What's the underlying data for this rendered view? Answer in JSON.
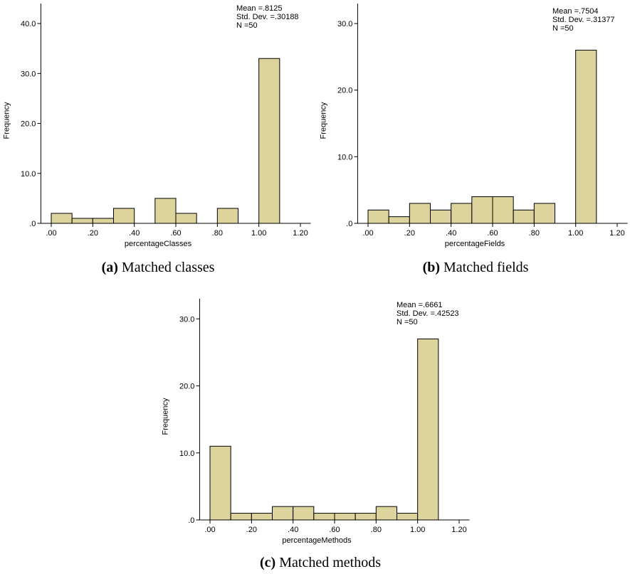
{
  "figure": {
    "captions": [
      {
        "tag": "(a)",
        "text": "Matched classes"
      },
      {
        "tag": "(b)",
        "text": "Matched fields"
      },
      {
        "tag": "(c)",
        "text": "Matched methods"
      }
    ]
  },
  "style": {
    "bar_fill": "#ddd39c",
    "bar_stroke": "#000000",
    "axis_color": "#000000"
  },
  "chart_data": [
    {
      "type": "bar",
      "title": "",
      "xlabel": "percentageClasses",
      "ylabel": "Frequency",
      "bin_width": 0.1,
      "bins": [
        0.0,
        0.1,
        0.2,
        0.3,
        0.5,
        0.6,
        0.8,
        1.0
      ],
      "values": [
        2,
        1,
        1,
        3,
        5,
        2,
        3,
        33
      ],
      "xlim": [
        -0.05,
        1.25
      ],
      "ylim": [
        0,
        44
      ],
      "xticks": [
        0.0,
        0.2,
        0.4,
        0.6,
        0.8,
        1.0,
        1.2
      ],
      "xtick_labels": [
        ".00",
        ".20",
        ".40",
        ".60",
        ".80",
        "1.00",
        "1.20"
      ],
      "yticks": [
        0,
        10,
        20,
        30,
        40
      ],
      "ytick_labels": [
        ".0",
        "10.0",
        "20.0",
        "30.0",
        "40.0"
      ],
      "stats": [
        "Mean =.8125",
        "Std. Dev. =.30188",
        "N =50"
      ],
      "grid": false
    },
    {
      "type": "bar",
      "title": "",
      "xlabel": "percentageFields",
      "ylabel": "Frequency",
      "bin_width": 0.1,
      "bins": [
        0.0,
        0.1,
        0.2,
        0.3,
        0.4,
        0.5,
        0.6,
        0.7,
        0.8,
        1.0
      ],
      "values": [
        2,
        1,
        3,
        2,
        3,
        4,
        4,
        2,
        3,
        26
      ],
      "xlim": [
        -0.05,
        1.25
      ],
      "ylim": [
        0,
        33
      ],
      "xticks": [
        0.0,
        0.2,
        0.4,
        0.6,
        0.8,
        1.0,
        1.2
      ],
      "xtick_labels": [
        ".00",
        ".20",
        ".40",
        ".60",
        ".80",
        "1.00",
        "1.20"
      ],
      "yticks": [
        0,
        10,
        20,
        30
      ],
      "ytick_labels": [
        ".0",
        "10.0",
        "20.0",
        "30.0"
      ],
      "stats": [
        "Mean =.7504",
        "Std. Dev. =.31377",
        "N =50"
      ],
      "grid": false
    },
    {
      "type": "bar",
      "title": "",
      "xlabel": "percentageMethods",
      "ylabel": "Frequency",
      "bin_width": 0.1,
      "bins": [
        0.0,
        0.1,
        0.2,
        0.3,
        0.4,
        0.5,
        0.6,
        0.7,
        0.8,
        0.9,
        1.0
      ],
      "values": [
        11,
        1,
        1,
        2,
        2,
        1,
        1,
        1,
        2,
        1,
        27
      ],
      "xlim": [
        -0.05,
        1.25
      ],
      "ylim": [
        0,
        33
      ],
      "xticks": [
        0.0,
        0.2,
        0.4,
        0.6,
        0.8,
        1.0,
        1.2
      ],
      "xtick_labels": [
        ".00",
        ".20",
        ".40",
        ".60",
        ".80",
        "1.00",
        "1.20"
      ],
      "yticks": [
        0,
        10,
        20,
        30
      ],
      "ytick_labels": [
        ".0",
        "10.0",
        "20.0",
        "30.0"
      ],
      "stats": [
        "Mean =.6661",
        "Std. Dev. =.42523",
        "N =50"
      ],
      "grid": false
    }
  ]
}
